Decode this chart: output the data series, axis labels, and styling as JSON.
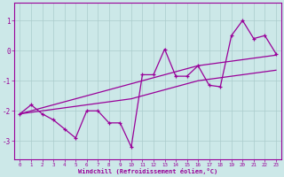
{
  "x_data": [
    0,
    1,
    2,
    3,
    4,
    5,
    6,
    7,
    8,
    9,
    10,
    11,
    12,
    13,
    14,
    15,
    16,
    17,
    18,
    19,
    20,
    21,
    22,
    23
  ],
  "y_main": [
    -2.1,
    -1.8,
    -2.1,
    -2.3,
    -2.6,
    -2.9,
    -2.0,
    -2.0,
    -2.4,
    -2.4,
    -3.2,
    -0.8,
    -0.8,
    0.05,
    -0.85,
    -0.85,
    -0.5,
    -1.15,
    -1.2,
    0.5,
    1.0,
    0.4,
    0.5,
    -0.1
  ],
  "y_line1": [
    -2.1,
    -2.0,
    -1.9,
    -1.8,
    -1.7,
    -1.6,
    -1.5,
    -1.4,
    -1.3,
    -1.2,
    -1.1,
    -1.0,
    -0.9,
    -0.8,
    -0.7,
    -0.6,
    -0.5,
    -0.45,
    -0.4,
    -0.35,
    -0.3,
    -0.25,
    -0.2,
    -0.15
  ],
  "y_line2": [
    -2.1,
    -2.05,
    -2.0,
    -1.95,
    -1.9,
    -1.85,
    -1.8,
    -1.75,
    -1.7,
    -1.65,
    -1.6,
    -1.5,
    -1.4,
    -1.3,
    -1.2,
    -1.1,
    -1.0,
    -0.95,
    -0.9,
    -0.85,
    -0.8,
    -0.75,
    -0.7,
    -0.65
  ],
  "bg_color": "#cce8e8",
  "grid_color": "#aacccc",
  "line_color": "#990099",
  "xlabel": "Windchill (Refroidissement éolien,°C)",
  "yticks": [
    -3,
    -2,
    -1,
    0,
    1
  ],
  "xticks": [
    0,
    1,
    2,
    3,
    4,
    5,
    6,
    7,
    8,
    9,
    10,
    11,
    12,
    13,
    14,
    15,
    16,
    17,
    18,
    19,
    20,
    21,
    22,
    23
  ],
  "xlim": [
    -0.5,
    23.5
  ],
  "ylim": [
    -3.6,
    1.6
  ]
}
